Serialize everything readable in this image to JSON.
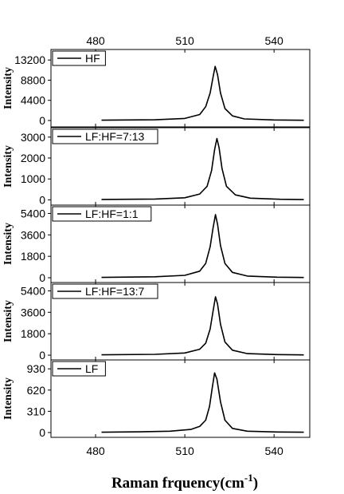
{
  "chart_data": {
    "type": "line",
    "shared_x": {
      "label": "Raman frquency(cm",
      "label_superscript": "-1",
      "label_suffix": ")",
      "range": [
        465,
        552
      ],
      "ticks": [
        480,
        510,
        540
      ],
      "tick_labels": [
        "480",
        "510",
        "540"
      ]
    },
    "panels": [
      {
        "legend": "HF",
        "ylabel": "Intensity",
        "ylim": [
          -1400,
          15500
        ],
        "yticks": [
          0,
          4400,
          8800,
          13200
        ],
        "ytick_labels": [
          "0",
          "4400",
          "8800",
          "13200"
        ],
        "series": [
          {
            "name": "HF",
            "x": [
              482,
              500,
              510,
              515,
              517,
              518.5,
              519.5,
              520.2,
              521,
              522,
              523.5,
              526,
              530,
              540,
              550
            ],
            "y": [
              60,
              150,
              450,
              1300,
              3000,
              6000,
              9500,
              11800,
              10000,
              6000,
              2600,
              1000,
              350,
              120,
              40
            ]
          }
        ]
      },
      {
        "legend": "LF:HF=7:13",
        "ylabel": "Intensity",
        "ylim": [
          -250,
          3450
        ],
        "yticks": [
          0,
          1000,
          2000,
          3000
        ],
        "ytick_labels": [
          "0",
          "1000",
          "2000",
          "3000"
        ],
        "series": [
          {
            "name": "LF:HF=7:13",
            "x": [
              482,
              500,
              510,
              515,
              517.5,
              519,
              520,
              520.8,
              521.5,
              522.5,
              524,
              527,
              532,
              542,
              550
            ],
            "y": [
              20,
              40,
              100,
              280,
              650,
              1400,
              2400,
              2930,
              2500,
              1500,
              650,
              240,
              80,
              30,
              15
            ]
          }
        ]
      },
      {
        "legend": "LF:HF=1:1",
        "ylabel": "Intensity",
        "ylim": [
          -400,
          6100
        ],
        "yticks": [
          0,
          1800,
          3600,
          5400
        ],
        "ytick_labels": [
          "0",
          "1800",
          "3600",
          "5400"
        ],
        "series": [
          {
            "name": "LF:HF=1:1",
            "x": [
              482,
              500,
              510,
              515,
              517,
              518.5,
              519.5,
              520.3,
              521,
              522,
              523.5,
              526,
              531,
              541,
              550
            ],
            "y": [
              30,
              80,
              200,
              550,
              1200,
              2600,
              4200,
              5300,
              4500,
              2700,
              1200,
              450,
              140,
              50,
              20
            ]
          }
        ]
      },
      {
        "legend": "LF:HF=13:7",
        "ylabel": "Intensity",
        "ylim": [
          -400,
          6100
        ],
        "yticks": [
          0,
          1800,
          3600,
          5400
        ],
        "ytick_labels": [
          "0",
          "1800",
          "3600",
          "5400"
        ],
        "series": [
          {
            "name": "LF:HF=13:7",
            "x": [
              482,
              500,
              510,
              515,
              517,
              518.5,
              519.5,
              520.3,
              521,
              522,
              523.5,
              526,
              531,
              541,
              550
            ],
            "y": [
              30,
              70,
              180,
              500,
              1000,
              2200,
              3700,
              4900,
              4300,
              2600,
              1100,
              420,
              130,
              50,
              20
            ]
          }
        ]
      },
      {
        "legend": "LF",
        "ylabel": "Intensity",
        "ylim": [
          -70,
          1060
        ],
        "yticks": [
          0,
          310,
          620,
          930
        ],
        "ytick_labels": [
          "0",
          "310",
          "620",
          "930"
        ],
        "series": [
          {
            "name": "LF",
            "x": [
              482,
              495,
              505,
              512,
              515,
              517,
              518.3,
              519.2,
              520,
              520.8,
              522,
              523.5,
              526,
              531,
              541,
              550
            ],
            "y": [
              5,
              10,
              20,
              45,
              90,
              180,
              380,
              650,
              870,
              780,
              450,
              180,
              60,
              20,
              8,
              5
            ]
          }
        ]
      }
    ]
  }
}
